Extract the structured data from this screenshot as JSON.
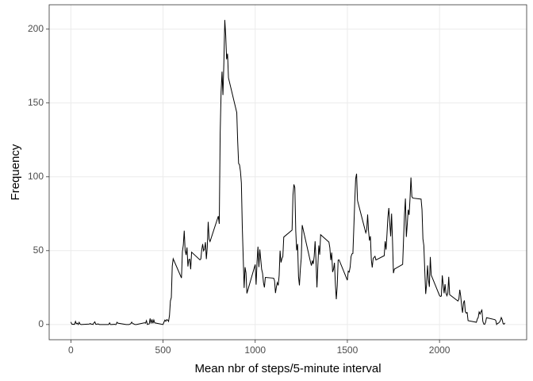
{
  "chart_data": {
    "type": "line",
    "x_label": "Mean nbr of steps/5-minute interval",
    "y_label": "Frequency",
    "color": "#000000",
    "grid": true,
    "xlim": [
      -117.75,
      2472.75
    ],
    "ylim": [
      -10.3,
      216.5
    ],
    "xticks": [
      0,
      500,
      1000,
      1500,
      2000
    ],
    "yticks": [
      0,
      50,
      100,
      150,
      200
    ],
    "x": [
      0,
      5,
      10,
      15,
      20,
      25,
      30,
      35,
      40,
      45,
      50,
      55,
      100,
      105,
      110,
      115,
      120,
      125,
      130,
      135,
      140,
      145,
      150,
      155,
      200,
      205,
      210,
      215,
      220,
      225,
      230,
      235,
      240,
      245,
      250,
      255,
      300,
      305,
      310,
      315,
      320,
      325,
      330,
      335,
      340,
      345,
      350,
      355,
      400,
      405,
      410,
      415,
      420,
      425,
      430,
      435,
      440,
      445,
      450,
      455,
      500,
      505,
      510,
      515,
      520,
      525,
      530,
      535,
      540,
      545,
      550,
      555,
      600,
      605,
      610,
      615,
      620,
      625,
      630,
      635,
      640,
      645,
      650,
      655,
      700,
      705,
      710,
      715,
      720,
      725,
      730,
      735,
      740,
      745,
      750,
      755,
      800,
      805,
      810,
      815,
      820,
      825,
      830,
      835,
      840,
      845,
      850,
      855,
      900,
      905,
      910,
      915,
      920,
      925,
      930,
      935,
      940,
      945,
      950,
      955,
      1000,
      1005,
      1010,
      1015,
      1020,
      1025,
      1030,
      1035,
      1040,
      1045,
      1050,
      1055,
      1100,
      1105,
      1110,
      1115,
      1120,
      1125,
      1130,
      1135,
      1140,
      1145,
      1150,
      1155,
      1200,
      1205,
      1210,
      1215,
      1220,
      1225,
      1230,
      1235,
      1240,
      1245,
      1250,
      1255,
      1300,
      1305,
      1310,
      1315,
      1320,
      1325,
      1330,
      1335,
      1340,
      1345,
      1350,
      1355,
      1400,
      1405,
      1410,
      1415,
      1420,
      1425,
      1430,
      1435,
      1440,
      1445,
      1450,
      1455,
      1500,
      1505,
      1510,
      1515,
      1520,
      1525,
      1530,
      1535,
      1540,
      1545,
      1550,
      1555,
      1600,
      1605,
      1610,
      1615,
      1620,
      1625,
      1630,
      1635,
      1640,
      1645,
      1650,
      1655,
      1700,
      1705,
      1710,
      1715,
      1720,
      1725,
      1730,
      1735,
      1740,
      1745,
      1750,
      1755,
      1800,
      1805,
      1810,
      1815,
      1820,
      1825,
      1830,
      1835,
      1840,
      1845,
      1850,
      1855,
      1900,
      1905,
      1910,
      1915,
      1920,
      1925,
      1930,
      1935,
      1940,
      1945,
      1950,
      1955,
      2000,
      2005,
      2010,
      2015,
      2020,
      2025,
      2030,
      2035,
      2040,
      2045,
      2050,
      2055,
      2100,
      2105,
      2110,
      2115,
      2120,
      2125,
      2130,
      2135,
      2140,
      2145,
      2150,
      2155,
      2200,
      2205,
      2210,
      2215,
      2220,
      2225,
      2230,
      2235,
      2240,
      2245,
      2250,
      2255,
      2300,
      2305,
      2310,
      2315,
      2320,
      2325,
      2330,
      2335,
      2340,
      2345,
      2350,
      2355
    ],
    "values": [
      1.7,
      0.3,
      0.1,
      0.2,
      0.1,
      2.1,
      0.5,
      0.9,
      0,
      1.5,
      0.3,
      0,
      0.3,
      0.7,
      0.2,
      0.3,
      0,
      1.1,
      1.8,
      0.2,
      0.2,
      0.4,
      0.3,
      0,
      0,
      0,
      1.1,
      0,
      0,
      0.1,
      0,
      0.2,
      0,
      0,
      1.5,
      0.9,
      0,
      0,
      0,
      0,
      0.2,
      0.6,
      1.6,
      0.6,
      0.5,
      0.1,
      0,
      0,
      1.2,
      0.9,
      2.6,
      0,
      0.3,
      0.4,
      4.1,
      0.7,
      3.5,
      0.8,
      3.1,
      1.1,
      0,
      1.6,
      3.0,
      2.2,
      3.3,
      3.0,
      2.1,
      6.1,
      16.0,
      18.3,
      39.5,
      44.5,
      31.5,
      49.3,
      53.8,
      63.5,
      50.0,
      47.1,
      52.2,
      39.3,
      44.0,
      44.2,
      37.4,
      49.0,
      43.8,
      44.4,
      50.5,
      54.5,
      49.9,
      51.0,
      55.7,
      44.3,
      52.3,
      69.5,
      57.8,
      56.2,
      73.4,
      68.2,
      129.4,
      157.5,
      171.2,
      155.4,
      177.3,
      206.2,
      195.9,
      179.6,
      183.4,
      167.0,
      143.5,
      124.0,
      109.1,
      108.1,
      103.7,
      95.9,
      66.2,
      45.2,
      24.8,
      38.8,
      34.98,
      21.1,
      40.6,
      26.98,
      42.4,
      52.7,
      38.9,
      50.8,
      44.3,
      37.4,
      34.7,
      28.3,
      25.1,
      31.9,
      31.4,
      29.7,
      21.3,
      25.5,
      28.4,
      26.5,
      33.3,
      49.98,
      42.0,
      44.6,
      46.0,
      59.2,
      63.9,
      87.7,
      94.8,
      92.8,
      63.4,
      50.2,
      54.5,
      32.4,
      26.5,
      37.7,
      45.1,
      67.3,
      42.3,
      39.9,
      43.3,
      40.98,
      46.2,
      56.4,
      42.8,
      25.1,
      39.96,
      53.5,
      47.3,
      60.8,
      55.8,
      51.96,
      43.6,
      48.7,
      35.5,
      37.5,
      41.8,
      27.5,
      17.1,
      26.1,
      43.6,
      43.8,
      30.0,
      36.1,
      35.5,
      38.8,
      45.96,
      47.8,
      48.1,
      65.3,
      82.9,
      98.7,
      102.1,
      83.96,
      62.1,
      64.1,
      74.5,
      63.2,
      56.9,
      59.8,
      43.9,
      38.6,
      44.7,
      45.5,
      46.2,
      43.7,
      46.6,
      56.3,
      50.7,
      61.2,
      72.7,
      78.9,
      68.9,
      59.7,
      75.1,
      56.5,
      34.8,
      37.5,
      40.7,
      58.0,
      74.7,
      85.3,
      59.3,
      67.8,
      77.7,
      74.2,
      85.3,
      99.5,
      86.6,
      85.6,
      84.9,
      77.8,
      58.0,
      53.4,
      36.3,
      20.7,
      27.4,
      40.0,
      30.2,
      25.5,
      45.7,
      33.5,
      19.6,
      19.0,
      19.3,
      33.3,
      26.8,
      21.2,
      27.3,
      21.3,
      19.5,
      21.3,
      32.3,
      20.2,
      15.9,
      17.2,
      23.5,
      19.2,
      12.5,
      8.0,
      14.7,
      16.3,
      8.7,
      7.8,
      8.1,
      2.6,
      1.5,
      3.7,
      4.8,
      8.5,
      7.1,
      8.7,
      9.8,
      2.2,
      0.3,
      0.1,
      1.6,
      4.6,
      3.3,
      2.8,
      0,
      0.8,
      0.96,
      1.6,
      2.6,
      4.7,
      3.3,
      0.6,
      0.2,
      1.1
    ]
  }
}
